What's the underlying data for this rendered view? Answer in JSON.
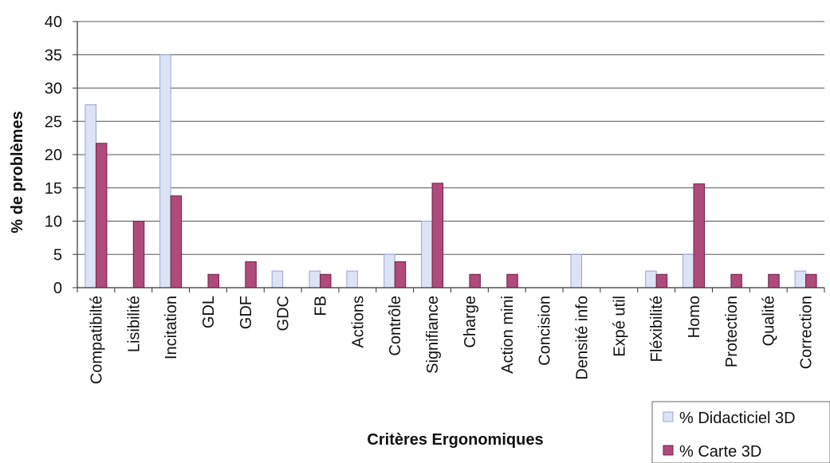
{
  "chart_data": {
    "type": "bar",
    "title": "",
    "xlabel": "Critères Ergonomiques",
    "ylabel": "% de problèmes",
    "ylim": [
      0,
      40
    ],
    "yticks": [
      0,
      5,
      10,
      15,
      20,
      25,
      30,
      35,
      40
    ],
    "grid": true,
    "legend_position": "bottom-right",
    "categories": [
      "Compatibilté",
      "Lisibilité",
      "Incitation",
      "GDL",
      "GDF",
      "GDC",
      "FB",
      "Actions",
      "Contrôle",
      "Signifiance",
      "Charge",
      "Action mini",
      "Concision",
      "Densité info",
      "Expé util",
      "Fléxibilité",
      "Homo",
      "Protection",
      "Qualité",
      "Correction"
    ],
    "series": [
      {
        "name": "% Didacticiel 3D",
        "color": "#dde3f7",
        "border": "#9aa3cf",
        "values": [
          27.5,
          0,
          35,
          0,
          0,
          2.5,
          2.5,
          2.5,
          5,
          10,
          0,
          0,
          0,
          5,
          0,
          2.5,
          5,
          0,
          0,
          2.5
        ]
      },
      {
        "name": "% Carte 3D",
        "color": "#b04a7a",
        "border": "#6e2147",
        "values": [
          21.7,
          10,
          13.8,
          2,
          3.9,
          0,
          2,
          0,
          3.9,
          15.7,
          2,
          2,
          0,
          0,
          0,
          2,
          15.6,
          2,
          2,
          2
        ]
      }
    ]
  }
}
